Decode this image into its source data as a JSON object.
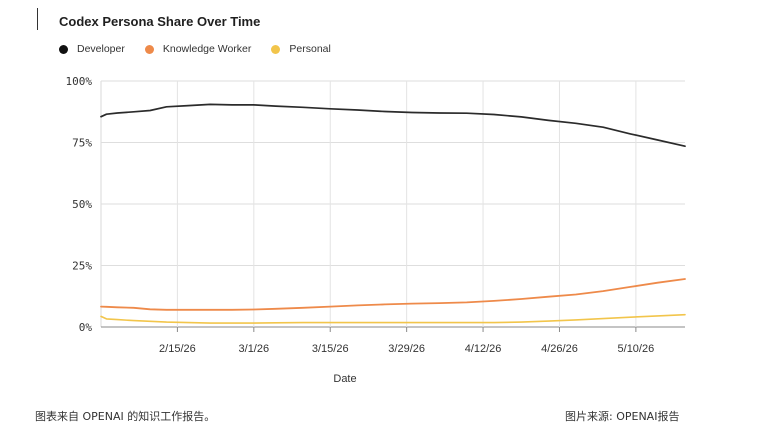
{
  "chart_data": {
    "type": "line",
    "title": "Codex Persona Share Over Time",
    "xlabel": "Date",
    "ylabel": "",
    "ylim": [
      0,
      100
    ],
    "yticks": [
      "0%",
      "25%",
      "50%",
      "75%",
      "100%"
    ],
    "xticks": [
      "2/15/26",
      "3/1/26",
      "3/15/26",
      "3/29/26",
      "4/12/26",
      "4/26/26",
      "5/10/26"
    ],
    "xtick_dates": [
      "2026-02-15",
      "2026-03-01",
      "2026-03-15",
      "2026-03-29",
      "2026-04-12",
      "2026-04-26",
      "2026-05-10"
    ],
    "xlim": [
      "2026-02-01",
      "2026-05-19"
    ],
    "x": [
      "2026-02-01",
      "2026-02-02",
      "2026-02-04",
      "2026-02-07",
      "2026-02-10",
      "2026-02-13",
      "2026-02-17",
      "2026-02-21",
      "2026-02-25",
      "2026-03-01",
      "2026-03-05",
      "2026-03-10",
      "2026-03-15",
      "2026-03-20",
      "2026-03-25",
      "2026-03-30",
      "2026-04-04",
      "2026-04-09",
      "2026-04-14",
      "2026-04-19",
      "2026-04-24",
      "2026-04-29",
      "2026-05-04",
      "2026-05-09",
      "2026-05-14",
      "2026-05-19"
    ],
    "series": [
      {
        "name": "Developer",
        "color": "#2b2b2b",
        "values": [
          85.5,
          86.5,
          87,
          87.5,
          88,
          89.5,
          90,
          90.5,
          90.3,
          90.3,
          89.8,
          89.3,
          88.7,
          88.2,
          87.6,
          87.2,
          87,
          86.9,
          86.4,
          85.4,
          84,
          82.8,
          81.2,
          78.5,
          76,
          73.5
        ]
      },
      {
        "name": "Knowledge Worker",
        "color": "#ee8a4a",
        "values": [
          8.3,
          8.2,
          8.0,
          7.8,
          7.2,
          7.0,
          7.0,
          7.0,
          7.0,
          7.1,
          7.4,
          7.8,
          8.3,
          8.8,
          9.2,
          9.5,
          9.7,
          10.0,
          10.6,
          11.4,
          12.3,
          13.2,
          14.6,
          16.3,
          18.0,
          19.5
        ]
      },
      {
        "name": "Personal",
        "color": "#f2c54b",
        "values": [
          4.3,
          3.3,
          3.0,
          2.6,
          2.3,
          2.0,
          1.8,
          1.6,
          1.6,
          1.6,
          1.7,
          1.8,
          1.8,
          1.8,
          1.8,
          1.8,
          1.8,
          1.8,
          1.8,
          2.0,
          2.4,
          2.9,
          3.4,
          4.0,
          4.5,
          5.0
        ]
      }
    ],
    "grid": true,
    "legend_position": "top-left"
  },
  "footer": {
    "left": "图表来自 OPENAI 的知识工作报告。",
    "right": "图片来源: OPENAI报告"
  }
}
